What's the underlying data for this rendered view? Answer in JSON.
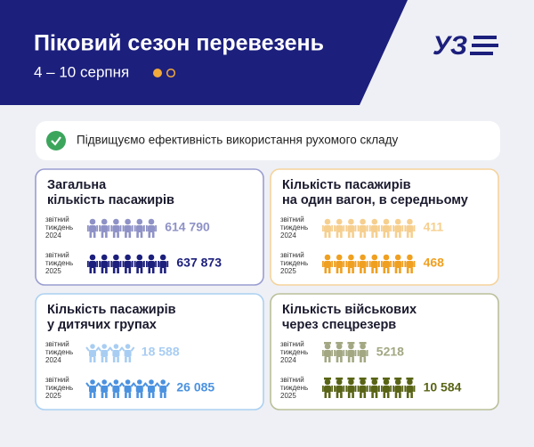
{
  "header": {
    "title": "Піковий сезон перевезень",
    "dates": "4 – 10 серпня",
    "logo": "УЗ"
  },
  "banner": {
    "text": "Підвищуємо ефективність використання рухомого складу"
  },
  "panels": [
    {
      "title_lines": [
        "Загальна",
        "кількість пасажирів"
      ],
      "rows": [
        {
          "label_lines": [
            "звітний",
            "тиждень",
            "2024"
          ],
          "value": "614 790"
        },
        {
          "label_lines": [
            "звітний",
            "тиждень",
            "2025"
          ],
          "value": "637 873"
        }
      ]
    },
    {
      "title_lines": [
        "Кількість пасажирів",
        "на один вагон, в середньому"
      ],
      "rows": [
        {
          "label_lines": [
            "звітний",
            "тиждень",
            "2024"
          ],
          "value": "411"
        },
        {
          "label_lines": [
            "звітний",
            "тиждень",
            "2025"
          ],
          "value": "468"
        }
      ]
    },
    {
      "title_lines": [
        "Кількість пасажирів",
        "у дитячих групах"
      ],
      "rows": [
        {
          "label_lines": [
            "звітний",
            "тиждень",
            "2024"
          ],
          "value": "18 588"
        },
        {
          "label_lines": [
            "звітний",
            "тиждень",
            "2025"
          ],
          "value": "26 085"
        }
      ]
    },
    {
      "title_lines": [
        "Кількість військових",
        "через спецрезерв"
      ],
      "rows": [
        {
          "label_lines": [
            "звітний",
            "тиждень",
            "2024"
          ],
          "value": "5218"
        },
        {
          "label_lines": [
            "звітний",
            "тиждень",
            "2025"
          ],
          "value": "10 584"
        }
      ]
    }
  ]
}
